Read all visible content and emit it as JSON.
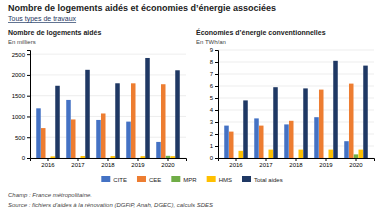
{
  "title": "Nombre de logements aidés et économies d’énergie associées",
  "subtitle": "Tous types de travaux",
  "annotations": [
    "Champ : France métropolitaine.",
    "Source : fichiers d’aides à la rénovation (DGFiP, Anah, DGEC), calculs SDES"
  ],
  "chart_data": [
    {
      "type": "bar",
      "title": "Nombre de logements aidés",
      "ylabel": "En milliers",
      "categories": [
        "2016",
        "2017",
        "2018",
        "2019",
        "2020"
      ],
      "series": [
        {
          "name": "CITE",
          "color": "#4472C4",
          "values": [
            1196,
            1398,
            916,
            876,
            387
          ]
        },
        {
          "name": "CEE",
          "color": "#ED7D31",
          "values": [
            720,
            928,
            1072,
            1798,
            1776
          ]
        },
        {
          "name": "MPR",
          "color": "#70AD47",
          "values": [
            0,
            0,
            0,
            0,
            52.6
          ]
        },
        {
          "name": "HMS",
          "color": "#FFC000",
          "values": [
            39,
            48,
            46,
            44,
            44
          ]
        },
        {
          "name": "Total aides",
          "color": "#1F3864",
          "values": [
            1739,
            2123,
            1799,
            2408,
            2112
          ]
        }
      ],
      "ylim": [
        0,
        2600
      ],
      "yticks": [
        0,
        500,
        1000,
        1500,
        2000,
        2500
      ],
      "grid": true,
      "legend": "bottom"
    },
    {
      "type": "bar",
      "title": "Économies d’énergie conventionnelles",
      "ylabel": "En TWh/an",
      "categories": [
        "2016",
        "2017",
        "2018",
        "2019",
        "2020"
      ],
      "series": [
        {
          "name": "CITE",
          "color": "#4472C4",
          "values": [
            2.7,
            3.3,
            2.8,
            3.4,
            1.4
          ]
        },
        {
          "name": "CEE",
          "color": "#ED7D31",
          "values": [
            2.2,
            2.7,
            3.1,
            5.7,
            6.2
          ]
        },
        {
          "name": "MPR",
          "color": "#70AD47",
          "values": [
            0.0,
            0.0,
            0.0,
            0.0,
            0.3
          ]
        },
        {
          "name": "HMS",
          "color": "#FFC000",
          "values": [
            0.6,
            0.7,
            0.7,
            0.7,
            0.7
          ]
        },
        {
          "name": "Total aides",
          "color": "#1F3864",
          "values": [
            4.8,
            5.9,
            5.8,
            8.1,
            7.7
          ]
        }
      ],
      "ylim": [
        0,
        9.0
      ],
      "yticks": [
        0,
        1,
        2,
        3,
        4,
        5,
        6,
        7,
        8,
        9
      ],
      "grid": true
    }
  ]
}
